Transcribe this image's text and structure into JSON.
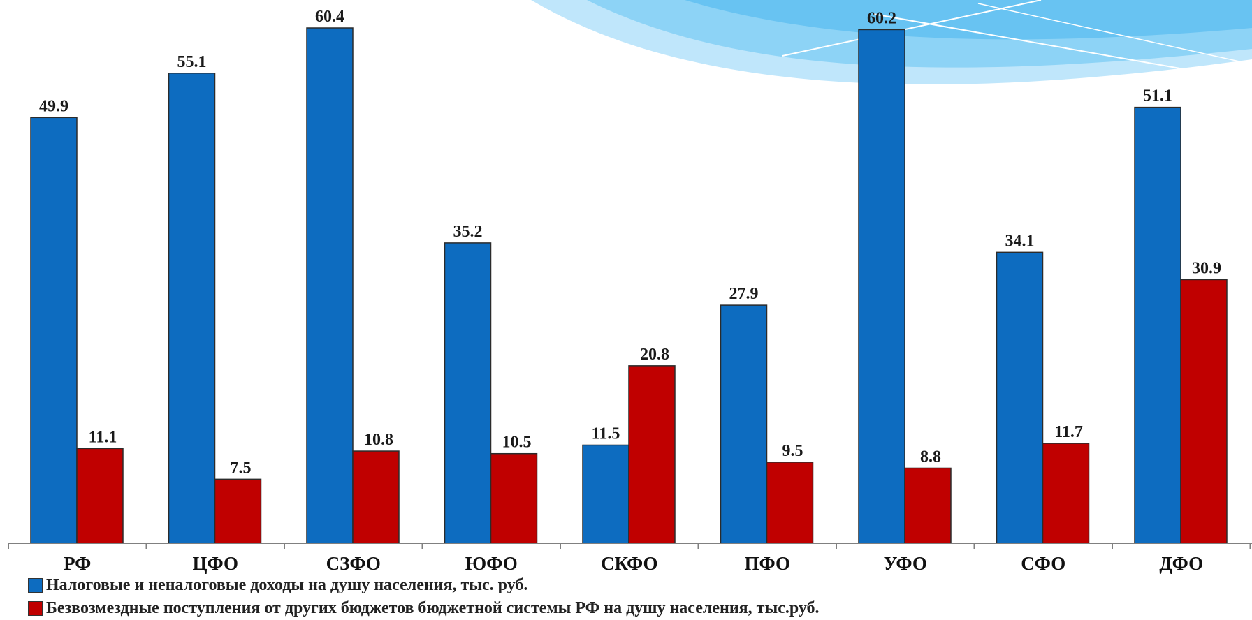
{
  "colors": {
    "series1": "#0d6cc0",
    "series2": "#c00000",
    "axis": "#808080",
    "wave_light": "#bfe6fb",
    "wave_mid": "#8dd3f6",
    "wave_deep": "#5cbdf0"
  },
  "chart_data": {
    "type": "bar",
    "categories": [
      "РФ",
      "ЦФО",
      "СЗФО",
      "ЮФО",
      "СКФО",
      "ПФО",
      "УФО",
      "СФО",
      "ДФО"
    ],
    "series": [
      {
        "name": "Налоговые и неналоговые доходы на душу населения, тыс. руб.",
        "values": [
          49.9,
          55.1,
          60.4,
          35.2,
          11.5,
          27.9,
          60.2,
          34.1,
          51.1
        ],
        "labels": [
          "49.9",
          "55.1",
          "60.4",
          "35.2",
          "11.5",
          "27.9",
          "60.2",
          "34.1",
          "51.1"
        ]
      },
      {
        "name": "Безвозмездные поступления от других бюджетов бюджетной системы РФ на душу населения, тыс.руб.",
        "values": [
          11.1,
          7.5,
          10.8,
          10.5,
          20.8,
          9.5,
          8.8,
          11.7,
          30.9
        ],
        "labels": [
          "11.1",
          "7.5",
          "10.8",
          "10.5",
          "20.8",
          "9.5",
          "8.8",
          "11.7",
          "30.9"
        ]
      }
    ],
    "ylim": [
      0,
      63
    ],
    "grid": false,
    "legend_position": "bottom"
  }
}
